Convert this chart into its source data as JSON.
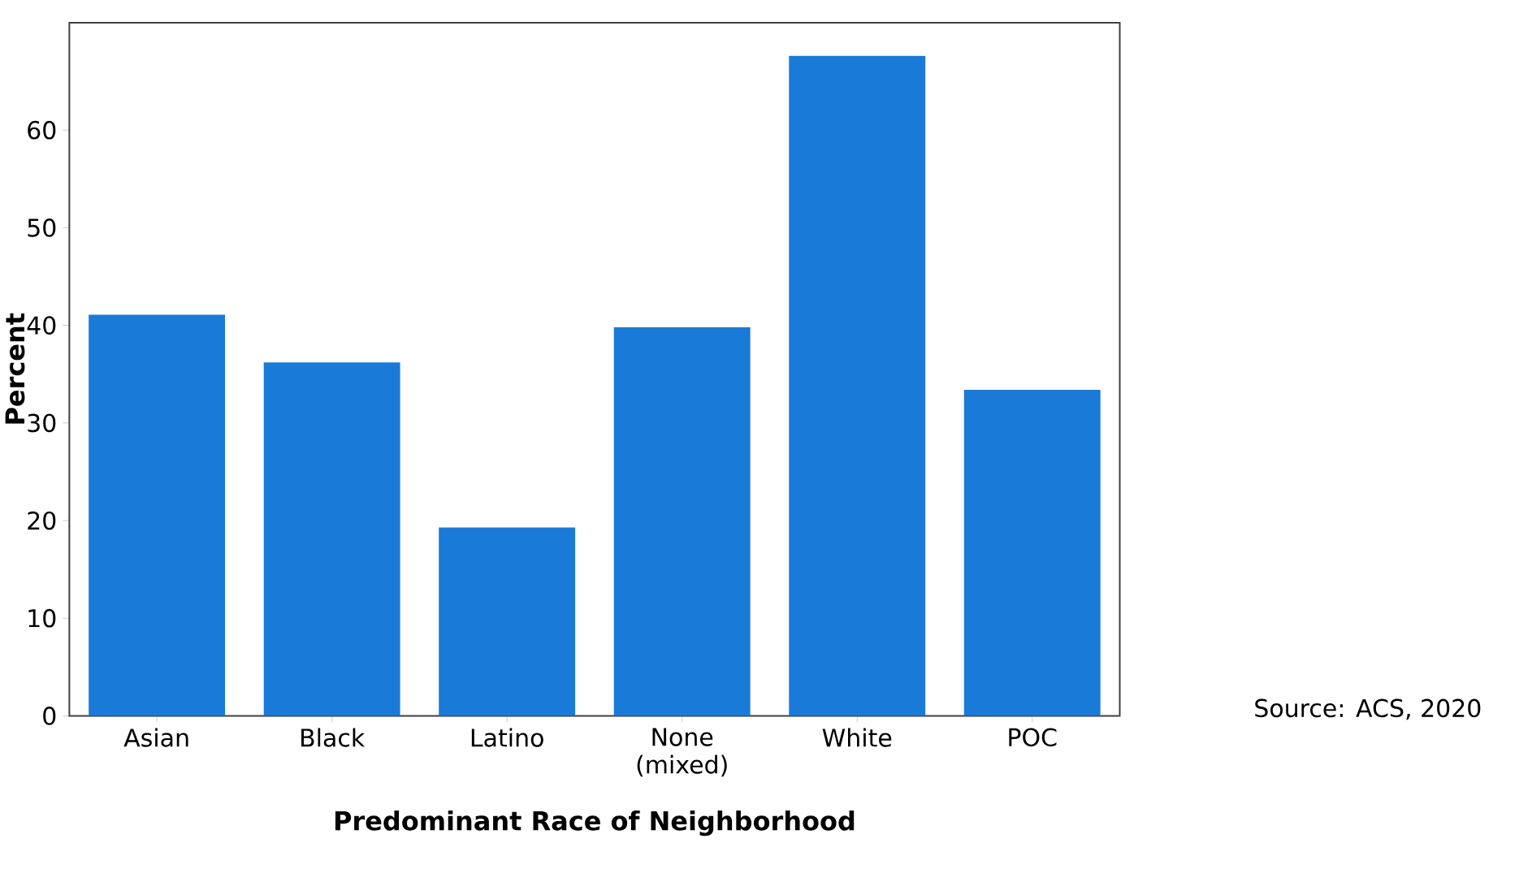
{
  "chart_data": {
    "type": "bar",
    "xlabel": "Predominant Race of Neighborhood",
    "ylabel": "Percent",
    "categories": [
      "Asian",
      "Black",
      "Latino",
      "None (mixed)",
      "White",
      "POC"
    ],
    "values": [
      41.1,
      36.2,
      19.3,
      39.8,
      67.6,
      33.4
    ],
    "color": "#1a7ad8",
    "ylim": [
      0,
      71
    ],
    "yticks": [
      0,
      10,
      20,
      30,
      40,
      50,
      60
    ],
    "grid": false,
    "annotations": [
      "Source: ACS, 2020"
    ]
  }
}
